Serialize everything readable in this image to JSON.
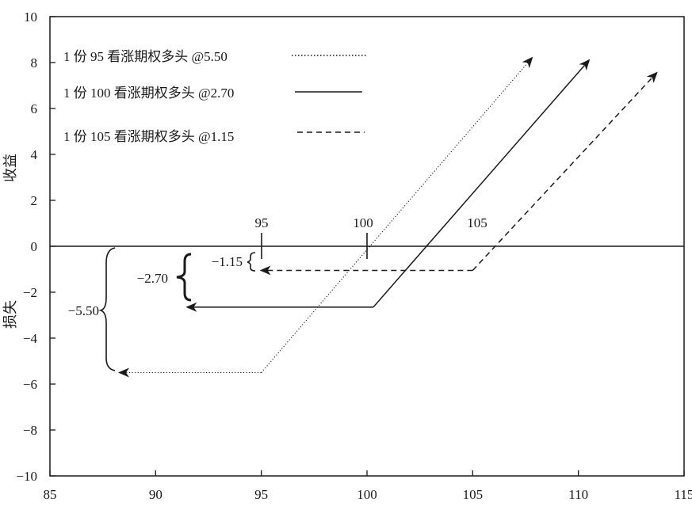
{
  "chart_data": {
    "type": "line",
    "title": "",
    "ylabel_top": "收益",
    "ylabel_bottom": "损失",
    "xlabel": "",
    "xlim": [
      85,
      115
    ],
    "ylim": [
      -10,
      10
    ],
    "x_ticks": [
      "85",
      "90",
      "95",
      "100",
      "105",
      "110",
      "115"
    ],
    "y_ticks": [
      "10",
      "8",
      "6",
      "4",
      "2",
      "0",
      "−2",
      "−4",
      "−6",
      "−8",
      "−10"
    ],
    "grid": false,
    "legend_position": "top-left",
    "series": [
      {
        "name": "1 份 95 看涨期权多头 @5.50",
        "style": "dotted",
        "strike": 95,
        "premium": 5.5,
        "points": [
          [
            95,
            -5.5
          ],
          [
            107.8,
            8.2
          ]
        ],
        "flat_arrow_to_x": 88.3
      },
      {
        "name": "1 份 100 看涨期权多头 @2.70",
        "style": "solid",
        "strike": 100,
        "premium": 2.7,
        "points": [
          [
            100.3,
            -2.65
          ],
          [
            110.5,
            8.1
          ]
        ],
        "flat_arrow_to_x": 91.5
      },
      {
        "name": "1 份 105 看涨期权多头 @1.15",
        "style": "dashed",
        "strike": 105,
        "premium": 1.15,
        "points": [
          [
            105,
            -1.05
          ],
          [
            113.7,
            7.55
          ]
        ],
        "flat_arrow_to_x": 95
      }
    ],
    "strike_labels": [
      "95",
      "100",
      "105"
    ],
    "annotations": [
      "−1.15",
      "−2.70",
      "−5.50"
    ]
  }
}
